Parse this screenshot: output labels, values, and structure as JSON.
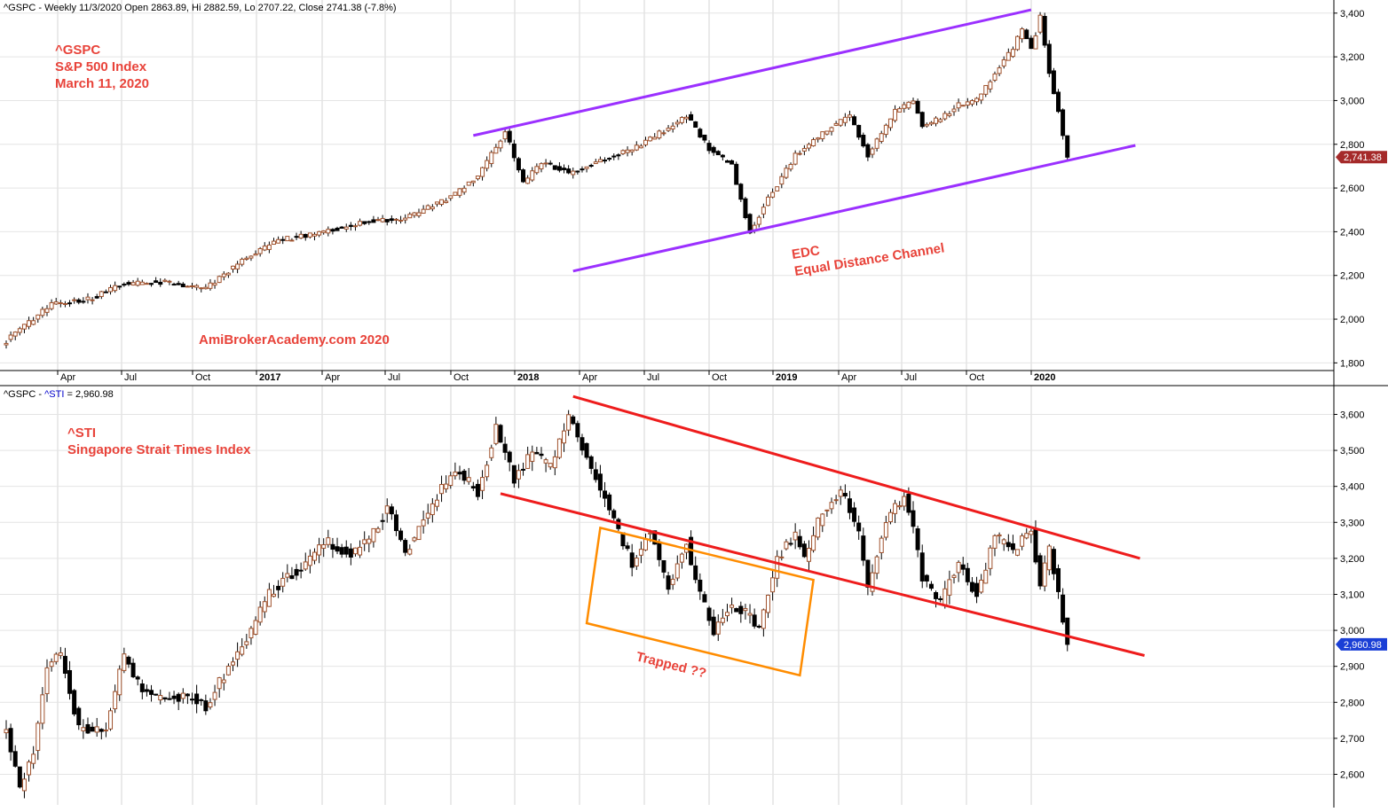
{
  "chart_data": [
    {
      "type": "candlestick",
      "header": "^GSPC - Weekly 11/3/2020 Open 2863.89, Hi 2882.59, Lo 2707.22, Close 2741.38 (-7.8%)",
      "annotations": {
        "label_lines": [
          "^GSPC",
          "S&P 500 Index",
          "March 11, 2020"
        ],
        "channel_lines": [
          "EDC",
          "Equal Distance Channel"
        ],
        "watermark": "AmiBrokerAcademy.com  2020"
      },
      "y_ticks": [
        "3,400",
        "3,200",
        "3,000",
        "2,800",
        "2,600",
        "2,400",
        "2,200",
        "2,000",
        "1,800"
      ],
      "y_tick_values": [
        3400,
        3200,
        3000,
        2800,
        2600,
        2400,
        2200,
        2000,
        1800
      ],
      "ylim": [
        1765,
        3460
      ],
      "last_value_label": "2,741.38",
      "last_value": 2741.38,
      "x_labels": [
        {
          "text": "Apr",
          "year": false
        },
        {
          "text": "Jul",
          "year": false
        },
        {
          "text": "Oct",
          "year": false
        },
        {
          "text": "2017",
          "year": true
        },
        {
          "text": "Apr",
          "year": false
        },
        {
          "text": "Jul",
          "year": false
        },
        {
          "text": "Oct",
          "year": false
        },
        {
          "text": "2018",
          "year": true
        },
        {
          "text": "Apr",
          "year": false
        },
        {
          "text": "Jul",
          "year": false
        },
        {
          "text": "Oct",
          "year": false
        },
        {
          "text": "2019",
          "year": true
        },
        {
          "text": "Apr",
          "year": false
        },
        {
          "text": "Jul",
          "year": false
        },
        {
          "text": "Oct",
          "year": false
        },
        {
          "text": "2020",
          "year": true
        }
      ],
      "anchors": [
        {
          "t": 0,
          "v": 1900
        },
        {
          "t": 10,
          "v": 2070
        },
        {
          "t": 18,
          "v": 2090
        },
        {
          "t": 26,
          "v": 2160
        },
        {
          "t": 34,
          "v": 2170
        },
        {
          "t": 44,
          "v": 2140
        },
        {
          "t": 52,
          "v": 2270
        },
        {
          "t": 60,
          "v": 2360
        },
        {
          "t": 70,
          "v": 2400
        },
        {
          "t": 80,
          "v": 2450
        },
        {
          "t": 88,
          "v": 2460
        },
        {
          "t": 98,
          "v": 2560
        },
        {
          "t": 104,
          "v": 2650
        },
        {
          "t": 110,
          "v": 2860
        },
        {
          "t": 114,
          "v": 2620
        },
        {
          "t": 118,
          "v": 2720
        },
        {
          "t": 124,
          "v": 2670
        },
        {
          "t": 132,
          "v": 2730
        },
        {
          "t": 140,
          "v": 2800
        },
        {
          "t": 148,
          "v": 2900
        },
        {
          "t": 150,
          "v": 2930
        },
        {
          "t": 155,
          "v": 2780
        },
        {
          "t": 160,
          "v": 2700
        },
        {
          "t": 164,
          "v": 2400
        },
        {
          "t": 168,
          "v": 2550
        },
        {
          "t": 174,
          "v": 2750
        },
        {
          "t": 182,
          "v": 2880
        },
        {
          "t": 186,
          "v": 2930
        },
        {
          "t": 190,
          "v": 2750
        },
        {
          "t": 196,
          "v": 2950
        },
        {
          "t": 200,
          "v": 3000
        },
        {
          "t": 202,
          "v": 2880
        },
        {
          "t": 206,
          "v": 2920
        },
        {
          "t": 210,
          "v": 2980
        },
        {
          "t": 214,
          "v": 3000
        },
        {
          "t": 222,
          "v": 3240
        },
        {
          "t": 224,
          "v": 3330
        },
        {
          "t": 226,
          "v": 3230
        },
        {
          "t": 228,
          "v": 3380
        },
        {
          "t": 230,
          "v": 3130
        },
        {
          "t": 232,
          "v": 2954
        },
        {
          "t": 234,
          "v": 2741
        }
      ],
      "channel": [
        {
          "t1": 103,
          "v1": 2840,
          "t2": 226,
          "v2": 3415
        },
        {
          "t1": 125,
          "v1": 2220,
          "t2": 249,
          "v2": 2795
        }
      ],
      "bars": 235
    },
    {
      "type": "candlestick",
      "header": "^GSPC - ^STI = 2,960.98",
      "header_parts": {
        "prefix": "^GSPC - ",
        "symbol": "^STI",
        "suffix": " = 2,960.98"
      },
      "annotations": {
        "label_lines": [
          "^STI",
          "Singapore Strait Times Index"
        ],
        "box_label": "Trapped ??"
      },
      "y_ticks": [
        "3,600",
        "3,500",
        "3,400",
        "3,300",
        "3,200",
        "3,100",
        "3,000",
        "2,900",
        "2,800",
        "2,700",
        "2,600"
      ],
      "y_tick_values": [
        3600,
        3500,
        3400,
        3300,
        3200,
        3100,
        3000,
        2900,
        2800,
        2700,
        2600
      ],
      "ylim": [
        2515,
        3680
      ],
      "last_value_label": "2,960.98",
      "last_value": 2960.98,
      "anchors": [
        {
          "t": 0,
          "v": 2720
        },
        {
          "t": 3,
          "v": 2560
        },
        {
          "t": 6,
          "v": 2660
        },
        {
          "t": 9,
          "v": 2900
        },
        {
          "t": 12,
          "v": 2930
        },
        {
          "t": 16,
          "v": 2730
        },
        {
          "t": 22,
          "v": 2720
        },
        {
          "t": 26,
          "v": 2930
        },
        {
          "t": 30,
          "v": 2830
        },
        {
          "t": 34,
          "v": 2810
        },
        {
          "t": 40,
          "v": 2820
        },
        {
          "t": 44,
          "v": 2790
        },
        {
          "t": 50,
          "v": 2920
        },
        {
          "t": 54,
          "v": 3000
        },
        {
          "t": 58,
          "v": 3100
        },
        {
          "t": 62,
          "v": 3150
        },
        {
          "t": 66,
          "v": 3180
        },
        {
          "t": 70,
          "v": 3250
        },
        {
          "t": 76,
          "v": 3210
        },
        {
          "t": 80,
          "v": 3250
        },
        {
          "t": 84,
          "v": 3340
        },
        {
          "t": 88,
          "v": 3220
        },
        {
          "t": 92,
          "v": 3300
        },
        {
          "t": 96,
          "v": 3400
        },
        {
          "t": 100,
          "v": 3440
        },
        {
          "t": 104,
          "v": 3380
        },
        {
          "t": 108,
          "v": 3560
        },
        {
          "t": 112,
          "v": 3420
        },
        {
          "t": 116,
          "v": 3500
        },
        {
          "t": 120,
          "v": 3450
        },
        {
          "t": 124,
          "v": 3600
        },
        {
          "t": 128,
          "v": 3480
        },
        {
          "t": 130,
          "v": 3430
        },
        {
          "t": 134,
          "v": 3300
        },
        {
          "t": 138,
          "v": 3190
        },
        {
          "t": 142,
          "v": 3280
        },
        {
          "t": 146,
          "v": 3120
        },
        {
          "t": 150,
          "v": 3250
        },
        {
          "t": 152,
          "v": 3130
        },
        {
          "t": 156,
          "v": 3000
        },
        {
          "t": 160,
          "v": 3070
        },
        {
          "t": 164,
          "v": 3040
        },
        {
          "t": 166,
          "v": 3000
        },
        {
          "t": 170,
          "v": 3200
        },
        {
          "t": 174,
          "v": 3270
        },
        {
          "t": 176,
          "v": 3200
        },
        {
          "t": 180,
          "v": 3330
        },
        {
          "t": 184,
          "v": 3390
        },
        {
          "t": 188,
          "v": 3270
        },
        {
          "t": 190,
          "v": 3120
        },
        {
          "t": 194,
          "v": 3310
        },
        {
          "t": 198,
          "v": 3370
        },
        {
          "t": 200,
          "v": 3280
        },
        {
          "t": 202,
          "v": 3150
        },
        {
          "t": 206,
          "v": 3080
        },
        {
          "t": 210,
          "v": 3190
        },
        {
          "t": 214,
          "v": 3100
        },
        {
          "t": 218,
          "v": 3260
        },
        {
          "t": 222,
          "v": 3220
        },
        {
          "t": 226,
          "v": 3280
        },
        {
          "t": 228,
          "v": 3130
        },
        {
          "t": 230,
          "v": 3220
        },
        {
          "t": 232,
          "v": 3100
        },
        {
          "t": 234,
          "v": 2961
        }
      ],
      "channel": [
        {
          "t1": 125,
          "v1": 3650,
          "t2": 250,
          "v2": 3200
        },
        {
          "t1": 109,
          "v1": 3380,
          "t2": 251,
          "v2": 2930
        }
      ],
      "box": [
        {
          "t": 128,
          "v": 3020
        },
        {
          "t": 131,
          "v": 3285
        },
        {
          "t": 178,
          "v": 3140
        },
        {
          "t": 175,
          "v": 2875
        }
      ],
      "bars": 235
    }
  ]
}
